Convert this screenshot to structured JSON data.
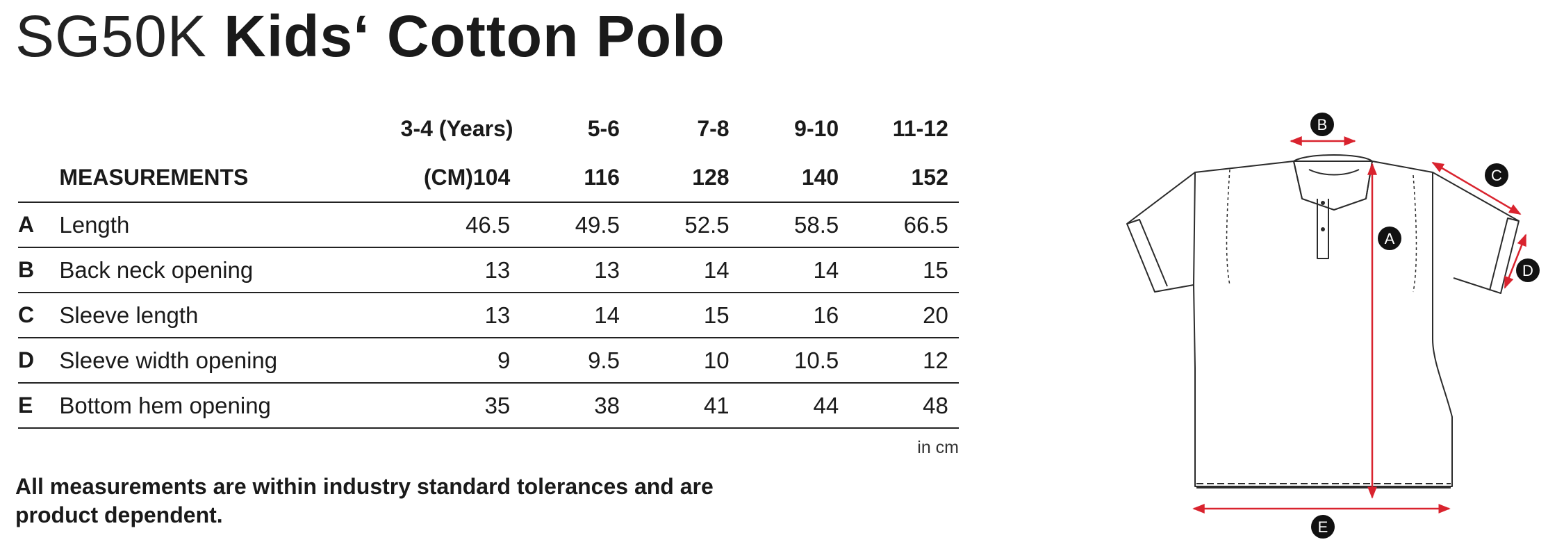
{
  "title": {
    "code": "SG50K",
    "name": "Kids‘ Cotton Polo"
  },
  "table": {
    "years_label": "(Years) 3-4",
    "sizes": [
      "5-6",
      "7-8",
      "9-10",
      "11-12"
    ],
    "measurements_label": "MEASUREMENTS",
    "cm_label": "(CM)104",
    "cm_sizes": [
      "116",
      "128",
      "140",
      "152"
    ],
    "rows": [
      {
        "letter": "A",
        "label": "Length",
        "values": [
          "46.5",
          "49.5",
          "52.5",
          "58.5",
          "66.5"
        ]
      },
      {
        "letter": "B",
        "label": "Back neck opening",
        "values": [
          "13",
          "13",
          "14",
          "14",
          "15"
        ]
      },
      {
        "letter": "C",
        "label": "Sleeve length",
        "values": [
          "13",
          "14",
          "15",
          "16",
          "20"
        ]
      },
      {
        "letter": "D",
        "label": "Sleeve width opening",
        "values": [
          "9",
          "9.5",
          "10",
          "10.5",
          "12"
        ]
      },
      {
        "letter": "E",
        "label": "Bottom hem opening",
        "values": [
          "35",
          "38",
          "41",
          "44",
          "48"
        ]
      }
    ]
  },
  "unit_note": "in cm",
  "tolerance_note": "All measurements are within industry standard tolerances and are product dependent.",
  "diagram": {
    "markers": [
      "A",
      "B",
      "C",
      "D",
      "E"
    ],
    "line_color": "#2b2b2b",
    "measure_color": "#d9232e",
    "marker_color": "#111111"
  }
}
